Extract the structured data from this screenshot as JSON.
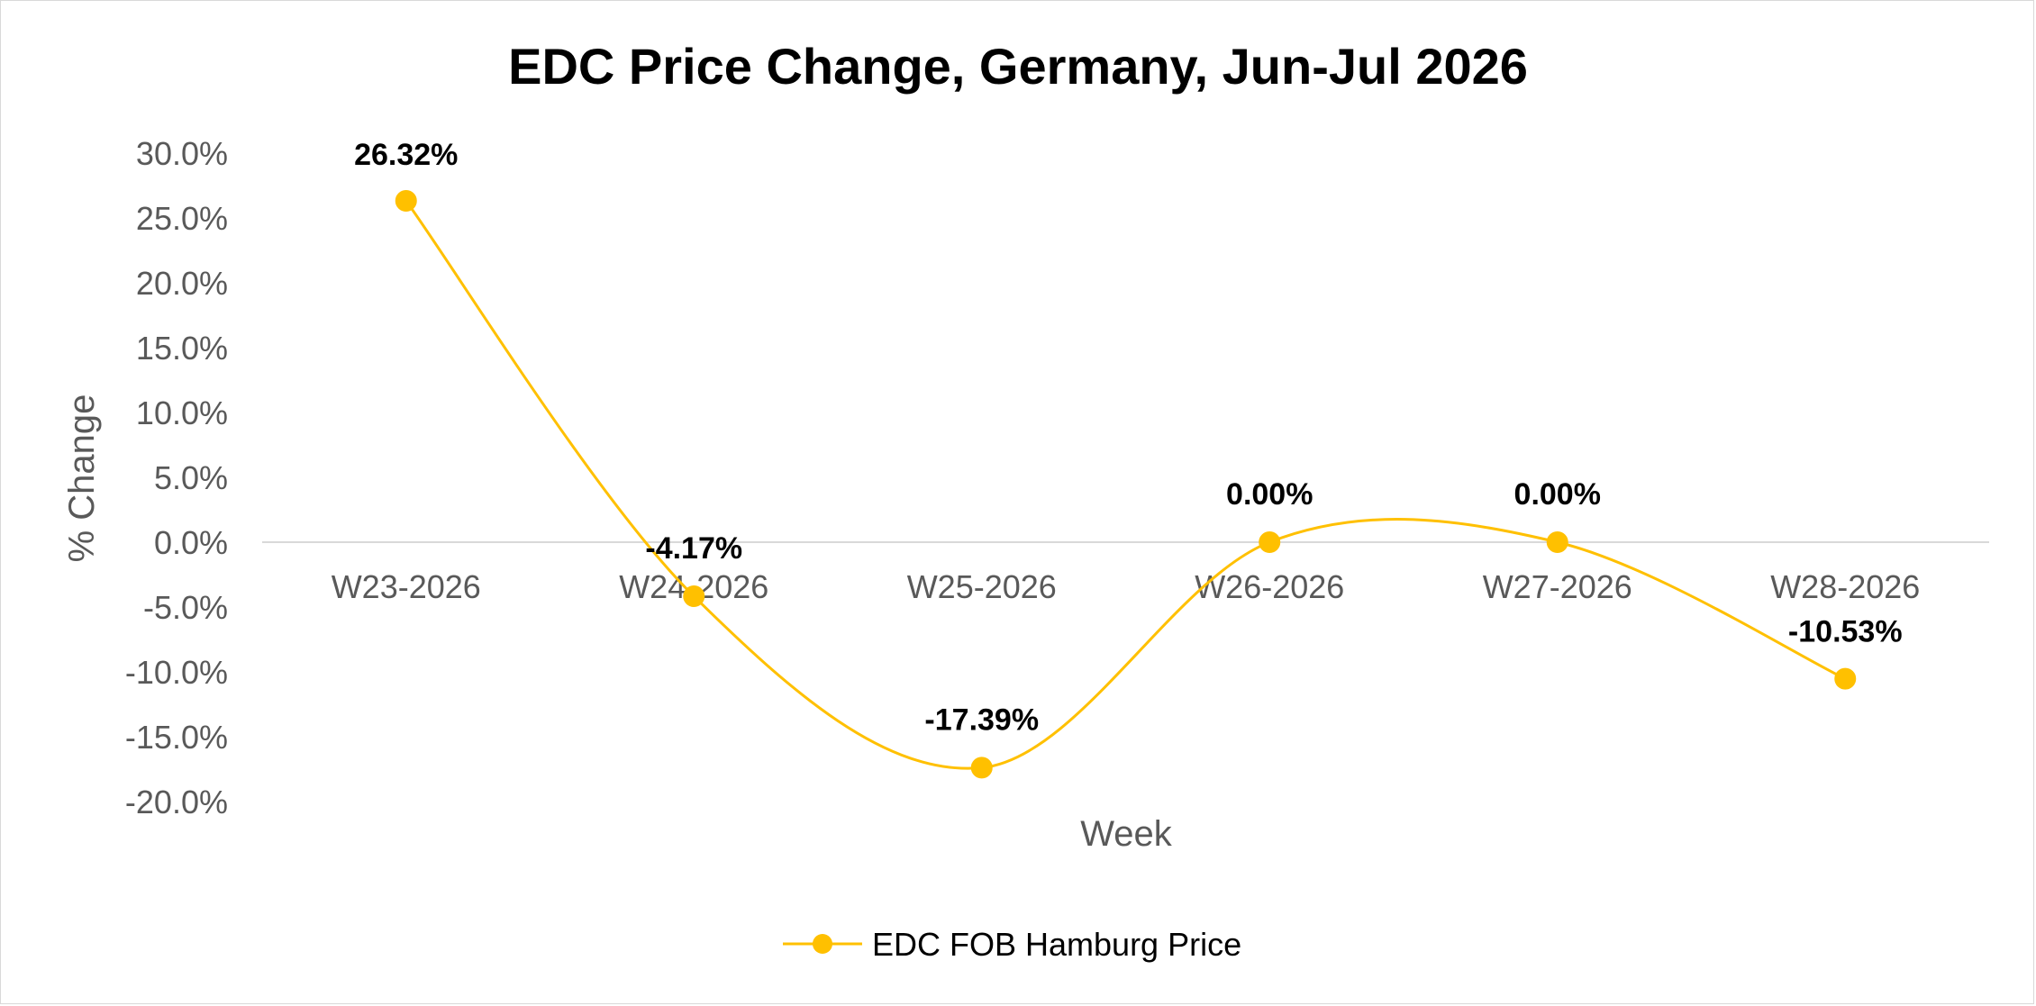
{
  "chart_data": {
    "type": "line",
    "title": "EDC Price Change, Germany, Jun-Jul 2026",
    "xlabel": "Week",
    "ylabel": "% Change",
    "categories": [
      "W23-2026",
      "W24-2026",
      "W25-2026",
      "W26-2026",
      "W27-2026",
      "W28-2026"
    ],
    "series": [
      {
        "name": "EDC FOB Hamburg Price",
        "values": [
          26.32,
          -4.17,
          -17.39,
          0.0,
          0.0,
          -10.53
        ],
        "labels": [
          "26.32%",
          "-4.17%",
          "-17.39%",
          "0.00%",
          "0.00%",
          "-10.53%"
        ],
        "color": "#FFC000",
        "smooth": true
      }
    ],
    "yticks": [
      "30.0%",
      "25.0%",
      "20.0%",
      "15.0%",
      "10.0%",
      "5.0%",
      "0.0%",
      "-5.0%",
      "-10.0%",
      "-15.0%",
      "-20.0%"
    ],
    "ylim": [
      -20,
      30
    ],
    "grid": false,
    "zero_line_color": "#d9d9d9",
    "legend_position": "bottom"
  }
}
